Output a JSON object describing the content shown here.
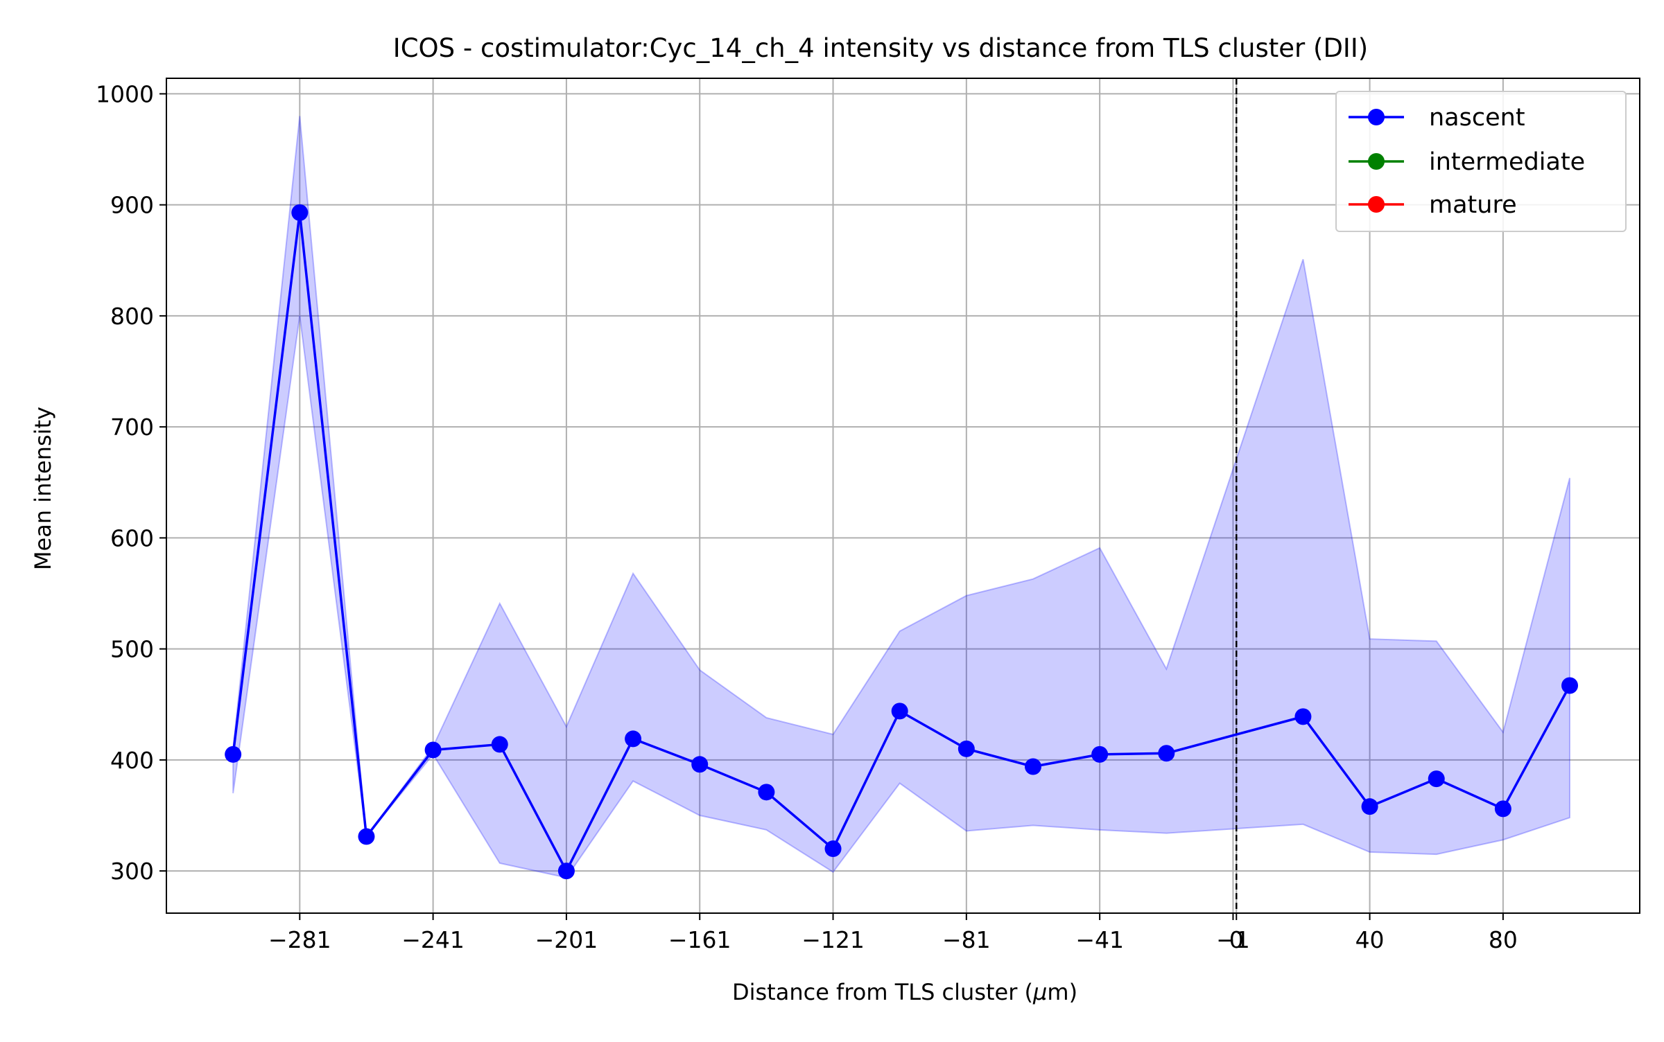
{
  "chart_data": {
    "type": "line",
    "title": "ICOS - costimulator:Cyc_14_ch_4 intensity vs distance from TLS cluster (DII)",
    "xlabel_main": "Distance from TLS cluster (",
    "xlabel_mu": "μ",
    "xlabel_tail": "m)",
    "ylabel": "Mean intensity",
    "xlim": [
      -321,
      121
    ],
    "ylim": [
      262,
      1014
    ],
    "grid": true,
    "legend_placement": "top-right",
    "x_ticks": [
      {
        "value": -281,
        "label": "−281"
      },
      {
        "value": -241,
        "label": "−241"
      },
      {
        "value": -201,
        "label": "−201"
      },
      {
        "value": -161,
        "label": "−161"
      },
      {
        "value": -121,
        "label": "−121"
      },
      {
        "value": -81,
        "label": "−81"
      },
      {
        "value": -41,
        "label": "−41"
      },
      {
        "value": -1,
        "label": "−1"
      },
      {
        "value": 0,
        "label": "0"
      },
      {
        "value": 40,
        "label": "40"
      },
      {
        "value": 80,
        "label": "80"
      }
    ],
    "y_ticks": [
      300,
      400,
      500,
      600,
      700,
      800,
      900,
      1000
    ],
    "vline_x": 0,
    "series": [
      {
        "name": "nascent",
        "color": "#0000ff",
        "band_color": "#0000ff",
        "points": [
          {
            "x": -301,
            "y": 405,
            "lo": 370,
            "hi": 410
          },
          {
            "x": -281,
            "y": 893,
            "lo": 800,
            "hi": 980
          },
          {
            "x": -261,
            "y": 331,
            "lo": 331,
            "hi": 331
          },
          {
            "x": -241,
            "y": 409,
            "lo": 405,
            "hi": 412
          },
          {
            "x": -221,
            "y": 414,
            "lo": 307,
            "hi": 541
          },
          {
            "x": -201,
            "y": 300,
            "lo": 294,
            "hi": 430
          },
          {
            "x": -181,
            "y": 419,
            "lo": 381,
            "hi": 568
          },
          {
            "x": -161,
            "y": 396,
            "lo": 350,
            "hi": 481
          },
          {
            "x": -141,
            "y": 371,
            "lo": 337,
            "hi": 438
          },
          {
            "x": -121,
            "y": 320,
            "lo": 299,
            "hi": 423
          },
          {
            "x": -101,
            "y": 444,
            "lo": 379,
            "hi": 516
          },
          {
            "x": -81,
            "y": 410,
            "lo": 336,
            "hi": 548
          },
          {
            "x": -61,
            "y": 394,
            "lo": 341,
            "hi": 563
          },
          {
            "x": -41,
            "y": 405,
            "lo": 337,
            "hi": 591
          },
          {
            "x": -21,
            "y": 406,
            "lo": 334,
            "hi": 482
          },
          {
            "x": 20,
            "y": 439,
            "lo": 342,
            "hi": 851
          },
          {
            "x": 40,
            "y": 358,
            "lo": 317,
            "hi": 509
          },
          {
            "x": 60,
            "y": 383,
            "lo": 315,
            "hi": 507
          },
          {
            "x": 80,
            "y": 356,
            "lo": 328,
            "hi": 425
          },
          {
            "x": 100,
            "y": 467,
            "lo": 348,
            "hi": 654
          }
        ]
      },
      {
        "name": "intermediate",
        "color": "#008000",
        "points": []
      },
      {
        "name": "mature",
        "color": "#ff0000",
        "points": []
      }
    ]
  }
}
